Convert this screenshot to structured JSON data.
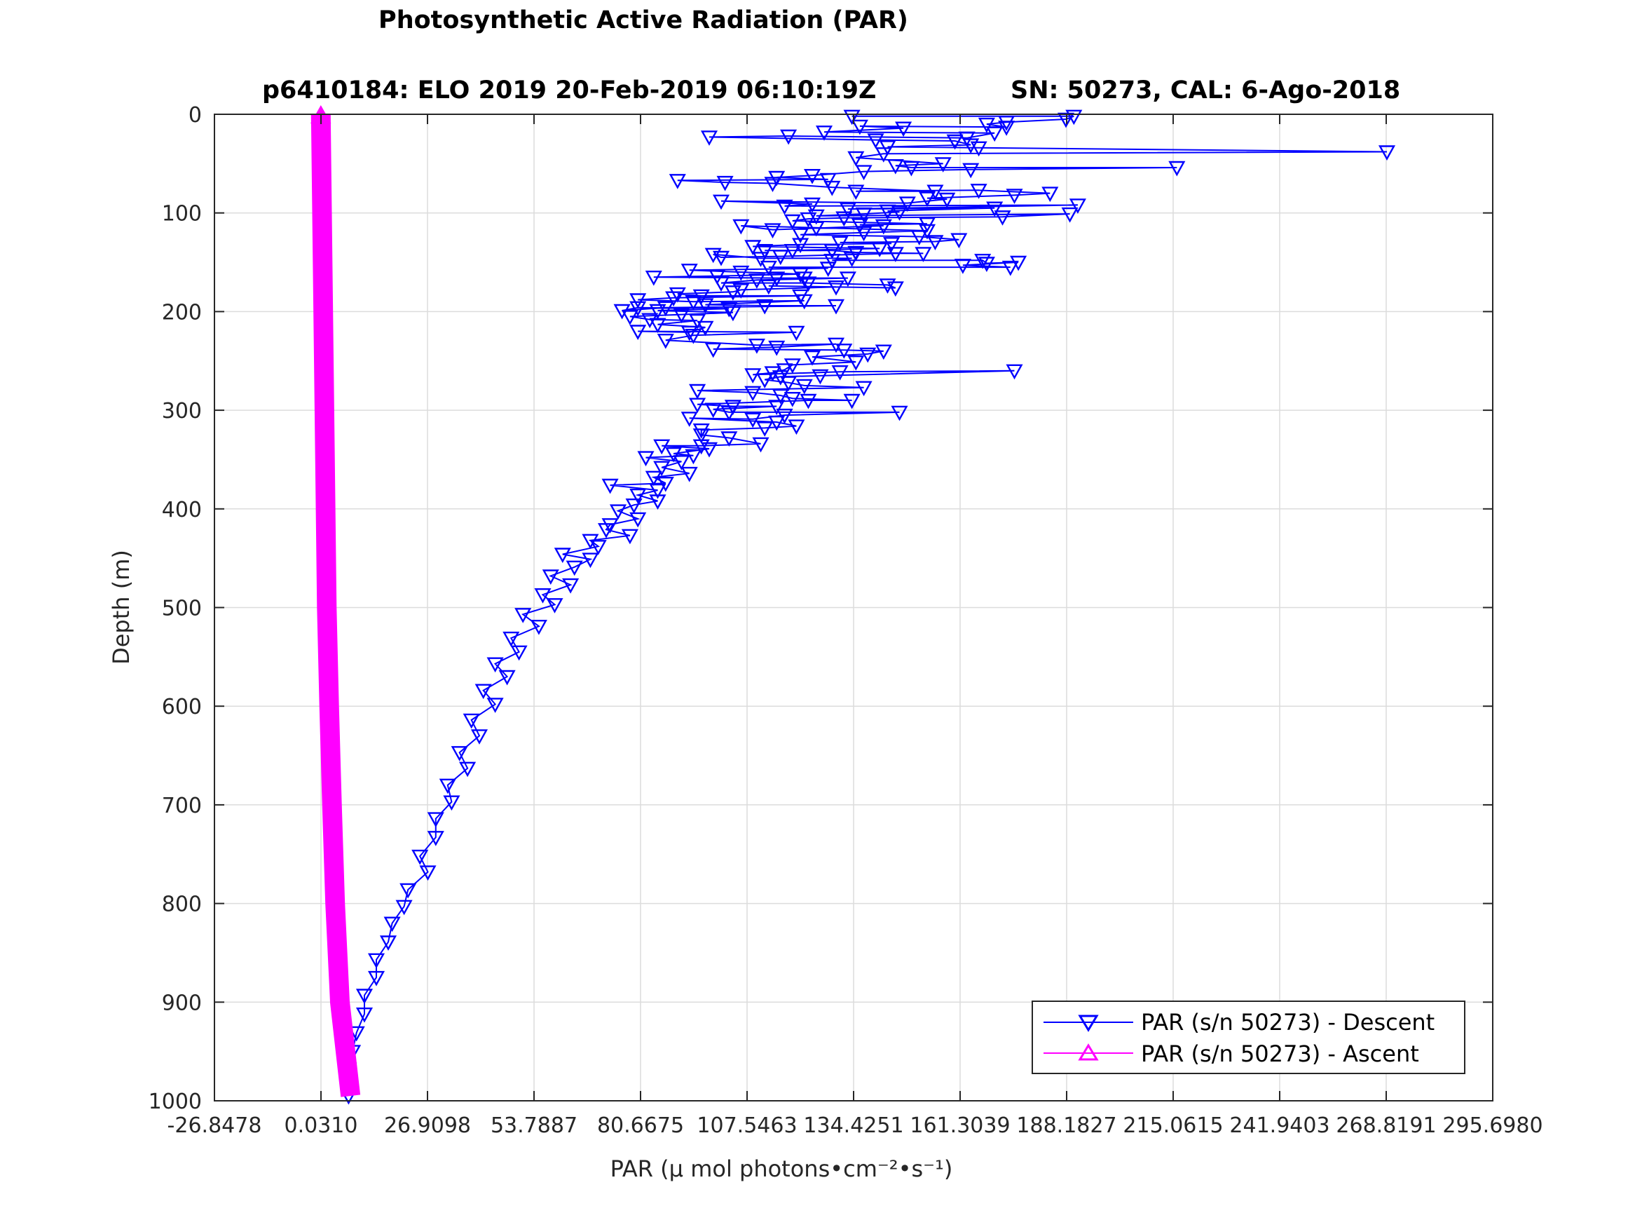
{
  "chart_data": {
    "type": "line",
    "title": "Photosynthetic Active Radiation (PAR)",
    "subtitle_left": "p6410184: ELO 2019 20-Feb-2019 06:10:19Z",
    "subtitle_right": "SN: 50273, CAL: 6-Ago-2018",
    "xlabel": "PAR (μ mol photons•cm⁻²•s⁻¹)",
    "ylabel": "Depth (m)",
    "xlim": [
      -26.8478,
      295.698
    ],
    "ylim": [
      1000,
      0
    ],
    "y_reversed": true,
    "grid": true,
    "legend_position": "bottom-right",
    "x_ticks": [
      "-26.8478",
      "0.0310",
      "26.9098",
      "53.7887",
      "80.6675",
      "107.5463",
      "134.4251",
      "161.3039",
      "188.1827",
      "215.0615",
      "241.9403",
      "268.8191",
      "295.6980"
    ],
    "x_tick_values": [
      -26.8478,
      0.031,
      26.9098,
      53.7887,
      80.6675,
      107.5463,
      134.4251,
      161.3039,
      188.1827,
      215.0615,
      241.9403,
      268.8191,
      295.698
    ],
    "y_ticks": [
      "0",
      "100",
      "200",
      "300",
      "400",
      "500",
      "600",
      "700",
      "800",
      "900",
      "1000"
    ],
    "y_tick_values": [
      0,
      100,
      200,
      300,
      400,
      500,
      600,
      700,
      800,
      900,
      1000
    ],
    "series": [
      {
        "name": "PAR (s/n 50273) - Descent",
        "color": "#0000ff",
        "marker": "triangle-down",
        "points": [
          [
            134,
            2
          ],
          [
            190,
            2
          ],
          [
            188,
            5
          ],
          [
            173,
            8
          ],
          [
            168,
            10
          ],
          [
            173,
            13
          ],
          [
            136,
            12
          ],
          [
            147,
            14
          ],
          [
            127,
            18
          ],
          [
            170,
            19
          ],
          [
            163,
            24
          ],
          [
            118,
            22
          ],
          [
            98,
            23
          ],
          [
            140,
            26
          ],
          [
            160,
            27
          ],
          [
            164,
            31
          ],
          [
            143,
            33
          ],
          [
            166,
            34
          ],
          [
            269,
            38
          ],
          [
            142,
            40
          ],
          [
            135,
            44
          ],
          [
            157,
            50
          ],
          [
            145,
            52
          ],
          [
            149,
            54
          ],
          [
            216,
            54
          ],
          [
            164,
            56
          ],
          [
            137,
            58
          ],
          [
            124,
            62
          ],
          [
            115,
            64
          ],
          [
            128,
            66
          ],
          [
            90,
            67
          ],
          [
            102,
            69
          ],
          [
            114,
            70
          ],
          [
            129,
            74
          ],
          [
            155,
            78
          ],
          [
            135,
            78
          ],
          [
            166,
            77
          ],
          [
            184,
            80
          ],
          [
            175,
            82
          ],
          [
            153,
            85
          ],
          [
            158,
            86
          ],
          [
            148,
            90
          ],
          [
            101,
            88
          ],
          [
            124,
            91
          ],
          [
            117,
            93
          ],
          [
            191,
            92
          ],
          [
            133,
            96
          ],
          [
            170,
            95
          ],
          [
            143,
            98
          ],
          [
            146,
            99
          ],
          [
            137,
            101
          ],
          [
            125,
            103
          ],
          [
            189,
            101
          ],
          [
            172,
            104
          ],
          [
            132,
            105
          ],
          [
            123,
            106
          ],
          [
            119,
            108
          ],
          [
            153,
            111
          ],
          [
            136,
            112
          ],
          [
            142,
            113
          ],
          [
            114,
            117
          ],
          [
            106,
            113
          ],
          [
            125,
            115
          ],
          [
            153,
            118
          ],
          [
            137,
            120
          ],
          [
            121,
            122
          ],
          [
            151,
            124
          ],
          [
            161,
            127
          ],
          [
            155,
            129
          ],
          [
            131,
            130
          ],
          [
            144,
            131
          ],
          [
            121,
            132
          ],
          [
            109,
            134
          ],
          [
            141,
            136
          ],
          [
            119,
            138
          ],
          [
            112,
            138
          ],
          [
            129,
            138
          ],
          [
            135,
            140
          ],
          [
            152,
            141
          ],
          [
            145,
            141
          ],
          [
            116,
            144
          ],
          [
            101,
            145
          ],
          [
            99,
            142
          ],
          [
            111,
            146
          ],
          [
            134,
            146
          ],
          [
            129,
            148
          ],
          [
            167,
            148
          ],
          [
            168,
            151
          ],
          [
            176,
            150
          ],
          [
            162,
            153
          ],
          [
            174,
            155
          ],
          [
            113,
            155
          ],
          [
            128,
            156
          ],
          [
            93,
            158
          ],
          [
            106,
            160
          ],
          [
            121,
            162
          ],
          [
            100,
            164
          ],
          [
            84,
            165
          ],
          [
            115,
            166
          ],
          [
            122,
            166
          ],
          [
            133,
            166
          ],
          [
            110,
            168
          ],
          [
            101,
            171
          ],
          [
            123,
            171
          ],
          [
            143,
            173
          ],
          [
            145,
            176
          ],
          [
            113,
            174
          ],
          [
            130,
            175
          ],
          [
            106,
            178
          ],
          [
            104,
            180
          ],
          [
            90,
            182
          ],
          [
            96,
            184
          ],
          [
            121,
            184
          ],
          [
            89,
            186
          ],
          [
            80,
            188
          ],
          [
            94,
            190
          ],
          [
            122,
            189
          ],
          [
            97,
            193
          ],
          [
            112,
            194
          ],
          [
            130,
            194
          ],
          [
            87,
            196
          ],
          [
            76,
            199
          ],
          [
            80,
            196
          ],
          [
            103,
            197
          ],
          [
            85,
            199
          ],
          [
            104,
            201
          ],
          [
            91,
            203
          ],
          [
            78,
            205
          ],
          [
            83,
            208
          ],
          [
            95,
            209
          ],
          [
            85,
            213
          ],
          [
            97,
            216
          ],
          [
            93,
            221
          ],
          [
            80,
            220
          ],
          [
            120,
            221
          ],
          [
            94,
            224
          ],
          [
            87,
            229
          ],
          [
            110,
            234
          ],
          [
            130,
            233
          ],
          [
            115,
            236
          ],
          [
            99,
            238
          ],
          [
            132,
            239
          ],
          [
            142,
            240
          ],
          [
            138,
            243
          ],
          [
            124,
            246
          ],
          [
            135,
            251
          ],
          [
            119,
            254
          ],
          [
            117,
            259
          ],
          [
            114,
            262
          ],
          [
            109,
            264
          ],
          [
            131,
            261
          ],
          [
            175,
            260
          ],
          [
            126,
            265
          ],
          [
            116,
            266
          ],
          [
            112,
            269
          ],
          [
            118,
            272
          ],
          [
            122,
            275
          ],
          [
            137,
            277
          ],
          [
            95,
            280
          ],
          [
            109,
            282
          ],
          [
            116,
            285
          ],
          [
            119,
            288
          ],
          [
            134,
            290
          ],
          [
            123,
            290
          ],
          [
            95,
            294
          ],
          [
            104,
            296
          ],
          [
            115,
            296
          ],
          [
            99,
            299
          ],
          [
            103,
            302
          ],
          [
            146,
            302
          ],
          [
            117,
            305
          ],
          [
            109,
            309
          ],
          [
            93,
            308
          ],
          [
            115,
            312
          ],
          [
            120,
            316
          ],
          [
            112,
            318
          ],
          [
            96,
            320
          ],
          [
            96,
            325
          ],
          [
            103,
            328
          ],
          [
            111,
            334
          ],
          [
            96,
            336
          ],
          [
            86,
            336
          ],
          [
            98,
            339
          ],
          [
            89,
            344
          ],
          [
            94,
            346
          ],
          [
            82,
            348
          ],
          [
            91,
            352
          ],
          [
            86,
            358
          ],
          [
            93,
            364
          ],
          [
            84,
            368
          ],
          [
            87,
            374
          ],
          [
            73,
            376
          ],
          [
            85,
            381
          ],
          [
            80,
            386
          ],
          [
            85,
            392
          ],
          [
            79,
            396
          ],
          [
            75,
            402
          ],
          [
            80,
            410
          ],
          [
            73,
            416
          ],
          [
            72,
            421
          ],
          [
            78,
            427
          ],
          [
            68,
            432
          ],
          [
            70,
            438
          ],
          [
            61,
            446
          ],
          [
            68,
            451
          ],
          [
            64,
            459
          ],
          [
            58,
            468
          ],
          [
            63,
            477
          ],
          [
            56,
            487
          ],
          [
            59,
            497
          ],
          [
            51,
            507
          ],
          [
            55,
            519
          ],
          [
            48,
            531
          ],
          [
            50,
            545
          ],
          [
            44,
            557
          ],
          [
            47,
            570
          ],
          [
            41,
            584
          ],
          [
            44,
            598
          ],
          [
            38,
            614
          ],
          [
            40,
            630
          ],
          [
            35,
            647
          ],
          [
            37,
            663
          ],
          [
            32,
            680
          ],
          [
            33,
            697
          ],
          [
            29,
            714
          ],
          [
            29,
            733
          ],
          [
            25,
            752
          ],
          [
            27,
            768
          ],
          [
            22,
            786
          ],
          [
            21,
            803
          ],
          [
            18,
            820
          ],
          [
            17,
            839
          ],
          [
            14,
            857
          ],
          [
            14,
            875
          ],
          [
            11,
            893
          ],
          [
            11,
            912
          ],
          [
            9,
            931
          ],
          [
            8,
            950
          ],
          [
            7,
            968
          ],
          [
            7,
            985
          ],
          [
            7,
            995
          ]
        ]
      },
      {
        "name": "PAR (s/n 50273) - Ascent",
        "color": "#ff00ff",
        "marker": "triangle-up",
        "points": [
          [
            0.0,
            0
          ],
          [
            0.3,
            100
          ],
          [
            0.6,
            200
          ],
          [
            0.9,
            300
          ],
          [
            1.2,
            400
          ],
          [
            1.5,
            500
          ],
          [
            2.1,
            600
          ],
          [
            2.8,
            700
          ],
          [
            3.6,
            800
          ],
          [
            4.8,
            900
          ],
          [
            7.5,
            995
          ]
        ]
      }
    ]
  }
}
